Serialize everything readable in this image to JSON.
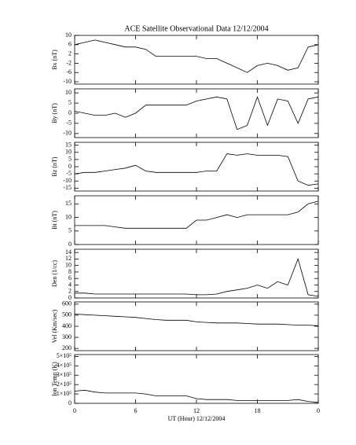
{
  "chart_data": [
    {
      "type": "line",
      "title": "ACE Satellite Observational Data   12/12/2004",
      "ylabel": "Bx (nT)",
      "color": "#000000",
      "x": [
        0,
        1,
        2,
        3,
        4,
        5,
        6,
        7,
        8,
        9,
        10,
        11,
        12,
        13,
        14,
        15,
        16,
        17,
        18,
        19,
        20,
        21,
        22,
        23,
        24
      ],
      "values": [
        6,
        7,
        8,
        7,
        6,
        5,
        5,
        4,
        1,
        1,
        1,
        1,
        1,
        0,
        0,
        -2,
        -4,
        -6,
        -3,
        -2,
        -3,
        -5,
        -4,
        5,
        6
      ],
      "xlim": [
        0,
        24
      ],
      "ylim": [
        -11,
        10
      ],
      "yticks": [
        -10,
        -6,
        -2,
        2,
        6,
        10
      ]
    },
    {
      "type": "line",
      "ylabel": "By (nT)",
      "color": "#000000",
      "x": [
        0,
        1,
        2,
        3,
        4,
        5,
        6,
        7,
        8,
        9,
        10,
        11,
        12,
        13,
        14,
        15,
        16,
        17,
        18,
        19,
        20,
        21,
        22,
        23,
        24
      ],
      "values": [
        1,
        0,
        -1,
        -1,
        0,
        -2,
        0,
        4,
        4,
        4,
        4,
        4,
        6,
        7,
        8,
        7,
        -8,
        -6,
        8,
        -6,
        7,
        6,
        -5,
        7,
        8
      ],
      "xlim": [
        0,
        24
      ],
      "ylim": [
        -12,
        12
      ],
      "yticks": [
        -10,
        -5,
        0,
        5,
        10
      ]
    },
    {
      "type": "line",
      "ylabel": "Bz (nT)",
      "color": "#000000",
      "x": [
        0,
        1,
        2,
        3,
        4,
        5,
        6,
        7,
        8,
        9,
        10,
        11,
        12,
        13,
        14,
        15,
        16,
        17,
        18,
        19,
        20,
        21,
        22,
        23,
        24
      ],
      "values": [
        -5,
        -4,
        -4,
        -3,
        -2,
        -1,
        1,
        -3,
        -4,
        -4,
        -4,
        -4,
        -4,
        -3,
        -3,
        9,
        8,
        9,
        8,
        8,
        8,
        7,
        -10,
        -13,
        -12
      ],
      "xlim": [
        0,
        24
      ],
      "ylim": [
        -17,
        17
      ],
      "yticks": [
        -15,
        -10,
        -5,
        0,
        5,
        10,
        15
      ]
    },
    {
      "type": "line",
      "ylabel": "Bt (nT)",
      "color": "#000000",
      "x": [
        0,
        1,
        2,
        3,
        4,
        5,
        6,
        7,
        8,
        9,
        10,
        11,
        12,
        13,
        14,
        15,
        16,
        17,
        18,
        19,
        20,
        21,
        22,
        23,
        24
      ],
      "values": [
        7,
        7,
        7,
        7,
        6.5,
        6,
        6,
        6,
        6,
        6,
        6,
        6,
        9,
        9,
        10,
        11,
        10,
        11,
        11,
        11,
        11,
        11,
        12,
        15,
        16
      ],
      "xlim": [
        0,
        24
      ],
      "ylim": [
        0,
        18
      ],
      "yticks": [
        0,
        5,
        10,
        15
      ]
    },
    {
      "type": "line",
      "ylabel": "Den (1/cc)",
      "color": "#000000",
      "x": [
        0,
        1,
        2,
        3,
        4,
        5,
        6,
        7,
        8,
        9,
        10,
        11,
        12,
        13,
        14,
        15,
        16,
        17,
        18,
        19,
        20,
        21,
        22,
        23,
        24
      ],
      "values": [
        1.5,
        1.5,
        1.2,
        1.2,
        1.2,
        1.2,
        1.2,
        1.2,
        1.2,
        1.2,
        1.2,
        1.2,
        1,
        1,
        1.2,
        2,
        2.5,
        3,
        4,
        3,
        5,
        4,
        12,
        1,
        0.5
      ],
      "xlim": [
        0,
        24
      ],
      "ylim": [
        0,
        15
      ],
      "yticks": [
        0,
        2,
        4,
        6,
        8,
        10,
        12,
        14
      ]
    },
    {
      "type": "line",
      "ylabel": "Vel (Km/sec)",
      "color": "#000000",
      "x": [
        0,
        1,
        2,
        3,
        4,
        5,
        6,
        7,
        8,
        9,
        10,
        11,
        12,
        13,
        14,
        15,
        16,
        17,
        18,
        19,
        20,
        21,
        22,
        23,
        24
      ],
      "values": [
        510,
        505,
        500,
        495,
        490,
        485,
        480,
        470,
        460,
        455,
        455,
        455,
        440,
        435,
        430,
        430,
        430,
        425,
        420,
        420,
        420,
        415,
        410,
        410,
        405
      ],
      "xlim": [
        0,
        24
      ],
      "ylim": [
        180,
        620
      ],
      "yticks": [
        200,
        300,
        400,
        500,
        600
      ]
    },
    {
      "type": "line",
      "ylabel": "Ion Temp (K)",
      "xlabel": "UT (Hour)   12/12/2004",
      "color": "#000000",
      "x": [
        0,
        1,
        2,
        3,
        4,
        5,
        6,
        7,
        8,
        9,
        10,
        11,
        12,
        13,
        14,
        15,
        16,
        17,
        18,
        19,
        20,
        21,
        22,
        23,
        24
      ],
      "values": [
        130000,
        140000,
        120000,
        110000,
        110000,
        110000,
        110000,
        100000,
        80000,
        80000,
        80000,
        80000,
        50000,
        40000,
        40000,
        40000,
        30000,
        30000,
        30000,
        30000,
        30000,
        30000,
        40000,
        20000,
        10000
      ],
      "xlim": [
        0,
        24
      ],
      "ylim": [
        0,
        520000
      ],
      "yticks": [
        0,
        {
          "value": 100000,
          "label": "1×10⁵"
        },
        {
          "value": 200000,
          "label": "2×10⁵"
        },
        {
          "value": 300000,
          "label": "3×10⁵"
        },
        {
          "value": 400000,
          "label": "4×10⁵"
        },
        {
          "value": 500000,
          "label": "5×10⁵"
        }
      ],
      "xticks": [
        0,
        6,
        12,
        18,
        {
          "value": 24,
          "label": "0"
        }
      ]
    }
  ]
}
